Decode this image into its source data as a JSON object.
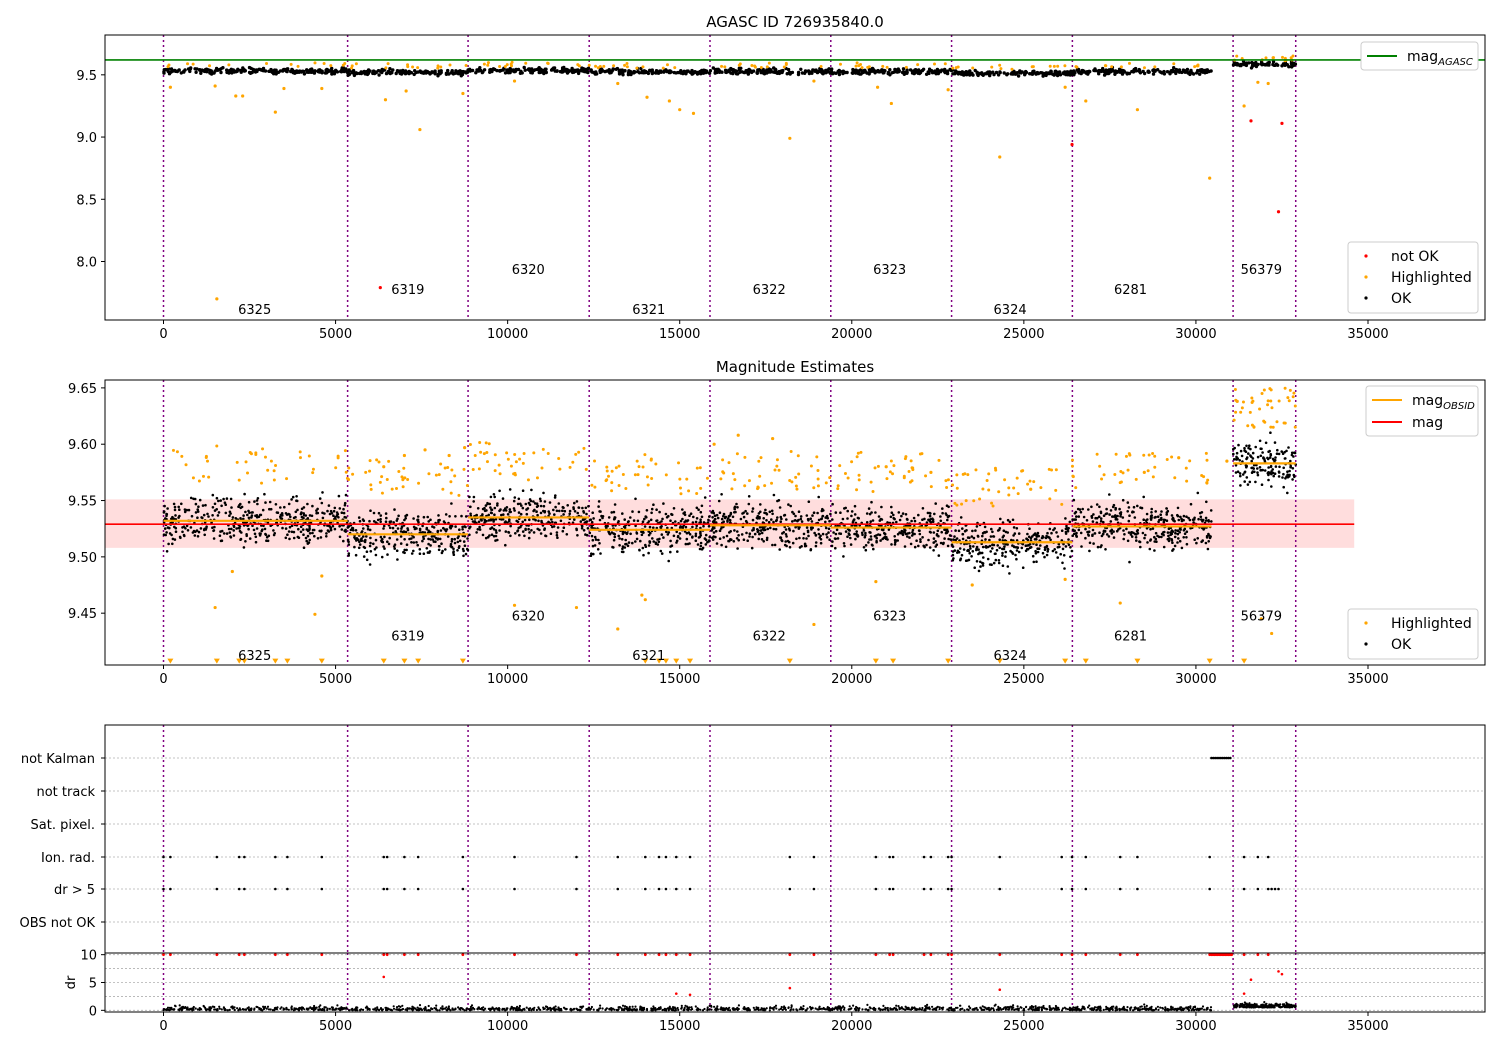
{
  "figure": {
    "title": "AGASC ID 726935840.0"
  },
  "chart_data": [
    {
      "type": "scatter",
      "title": "AGASC ID 726935840.0",
      "xlabel": "",
      "ylabel": "",
      "xlim": [
        -1700,
        38400
      ],
      "ylim": [
        7.53,
        9.82
      ],
      "x_ticks": [
        0,
        5000,
        10000,
        15000,
        20000,
        25000,
        30000,
        35000
      ],
      "y_ticks": [
        8.0,
        8.5,
        9.0,
        9.5
      ],
      "grid": false,
      "legend_upper": {
        "placement": "top-right",
        "entries": [
          {
            "label": "mag",
            "subscript": "AGASC",
            "color": "#008000",
            "kind": "line"
          }
        ]
      },
      "legend_lower": {
        "placement": "bottom-right",
        "entries": [
          {
            "label": "not OK",
            "color": "#ff0000",
            "kind": "point"
          },
          {
            "label": "Highlighted",
            "color": "#ffa500",
            "kind": "point"
          },
          {
            "label": "OK",
            "color": "#000000",
            "kind": "point"
          }
        ]
      },
      "mag_agasc": 9.62,
      "obsid_boundaries": [
        0,
        5350,
        8850,
        12370,
        15880,
        19390,
        22900,
        26410,
        31080,
        32900
      ],
      "obsid_labels": [
        {
          "text": "6325",
          "x": 2650,
          "y": 7.62
        },
        {
          "text": "6319",
          "x": 7100,
          "y": 7.78
        },
        {
          "text": "6320",
          "x": 10600,
          "y": 7.94
        },
        {
          "text": "6321",
          "x": 14100,
          "y": 7.62
        },
        {
          "text": "6322",
          "x": 17600,
          "y": 7.78
        },
        {
          "text": "6323",
          "x": 21100,
          "y": 7.94
        },
        {
          "text": "6324",
          "x": 24600,
          "y": 7.62
        },
        {
          "text": "6281",
          "x": 28100,
          "y": 7.78
        },
        {
          "text": "56379",
          "x": 31900,
          "y": 7.94
        }
      ],
      "segments": [
        {
          "x0": 0,
          "x1": 5350,
          "mean": 9.532
        },
        {
          "x0": 5350,
          "x1": 8850,
          "mean": 9.52
        },
        {
          "x0": 8850,
          "x1": 12370,
          "mean": 9.534
        },
        {
          "x0": 12370,
          "x1": 15880,
          "mean": 9.523
        },
        {
          "x0": 15880,
          "x1": 19390,
          "mean": 9.528
        },
        {
          "x0": 19390,
          "x1": 22900,
          "mean": 9.526
        },
        {
          "x0": 22900,
          "x1": 26410,
          "mean": 9.513
        },
        {
          "x0": 26410,
          "x1": 30450,
          "mean": 9.527
        },
        {
          "x0": 31080,
          "x1": 32900,
          "mean": 9.583
        }
      ],
      "ok_band_spread": 0.022,
      "highlighted_points": [
        [
          200,
          9.4
        ],
        [
          1500,
          9.41
        ],
        [
          1550,
          7.7
        ],
        [
          2100,
          9.33
        ],
        [
          2300,
          9.33
        ],
        [
          3250,
          9.2
        ],
        [
          3500,
          9.39
        ],
        [
          4600,
          9.39
        ],
        [
          6450,
          9.3
        ],
        [
          7050,
          9.37
        ],
        [
          7450,
          9.06
        ],
        [
          8700,
          9.35
        ],
        [
          10200,
          9.45
        ],
        [
          13200,
          9.43
        ],
        [
          14050,
          9.32
        ],
        [
          14700,
          9.29
        ],
        [
          15000,
          9.22
        ],
        [
          15400,
          9.19
        ],
        [
          18200,
          8.99
        ],
        [
          18900,
          9.45
        ],
        [
          20750,
          9.4
        ],
        [
          21150,
          9.27
        ],
        [
          22800,
          9.38
        ],
        [
          24300,
          8.84
        ],
        [
          26200,
          9.4
        ],
        [
          26800,
          9.29
        ],
        [
          28300,
          9.22
        ],
        [
          30400,
          8.67
        ],
        [
          31400,
          9.25
        ],
        [
          31800,
          9.44
        ],
        [
          32100,
          9.43
        ]
      ],
      "not_ok_points": [
        [
          6300,
          7.79
        ],
        [
          26400,
          8.94
        ],
        [
          31600,
          9.13
        ],
        [
          32400,
          8.4
        ],
        [
          32500,
          9.11
        ]
      ]
    },
    {
      "type": "scatter",
      "title": "Magnitude Estimates",
      "xlabel": "",
      "ylabel": "",
      "xlim": [
        -1700,
        38400
      ],
      "ylim": [
        9.404,
        9.657
      ],
      "x_ticks": [
        0,
        5000,
        10000,
        15000,
        20000,
        25000,
        30000,
        35000
      ],
      "y_ticks": [
        9.45,
        9.5,
        9.55,
        9.6,
        9.65
      ],
      "grid": false,
      "legend_upper": {
        "placement": "top-right",
        "entries": [
          {
            "label": "mag",
            "subscript": "OBSID",
            "color": "#ffa500",
            "kind": "line"
          },
          {
            "label": "mag",
            "subscript": "",
            "color": "#ff0000",
            "kind": "line"
          }
        ]
      },
      "legend_lower": {
        "placement": "bottom-right",
        "entries": [
          {
            "label": "Highlighted",
            "color": "#ffa500",
            "kind": "point"
          },
          {
            "label": "OK",
            "color": "#000000",
            "kind": "point"
          }
        ]
      },
      "mag": 9.529,
      "mag_band": [
        9.508,
        9.551
      ],
      "mag_band_xlim": [
        -1700,
        34600
      ],
      "obsid_boundaries": [
        0,
        5350,
        8850,
        12370,
        15880,
        19390,
        22900,
        26410,
        31080,
        32900
      ],
      "obsid_labels": [
        {
          "text": "6325",
          "x": 2650,
          "y": 9.413
        },
        {
          "text": "6319",
          "x": 7100,
          "y": 9.43
        },
        {
          "text": "6320",
          "x": 10600,
          "y": 9.448
        },
        {
          "text": "6321",
          "x": 14100,
          "y": 9.413
        },
        {
          "text": "6322",
          "x": 17600,
          "y": 9.43
        },
        {
          "text": "6323",
          "x": 21100,
          "y": 9.448
        },
        {
          "text": "6324",
          "x": 24600,
          "y": 9.413
        },
        {
          "text": "6281",
          "x": 28100,
          "y": 9.43
        },
        {
          "text": "56379",
          "x": 31900,
          "y": 9.448
        }
      ],
      "segments": [
        {
          "x0": 0,
          "x1": 5350,
          "mean": 9.532
        },
        {
          "x0": 5350,
          "x1": 8850,
          "mean": 9.52
        },
        {
          "x0": 8850,
          "x1": 12370,
          "mean": 9.535
        },
        {
          "x0": 12370,
          "x1": 15880,
          "mean": 9.524
        },
        {
          "x0": 15880,
          "x1": 19390,
          "mean": 9.528
        },
        {
          "x0": 19390,
          "x1": 22900,
          "mean": 9.526
        },
        {
          "x0": 22900,
          "x1": 26410,
          "mean": 9.513
        },
        {
          "x0": 26410,
          "x1": 30450,
          "mean": 9.527
        },
        {
          "x0": 31080,
          "x1": 32900,
          "mean": 9.583
        }
      ],
      "band_spread": 0.02,
      "highlighted_points": [
        [
          1500,
          9.455
        ],
        [
          2000,
          9.487
        ],
        [
          4400,
          9.449
        ],
        [
          4600,
          9.483
        ],
        [
          6400,
          9.58
        ],
        [
          7000,
          9.59
        ],
        [
          7600,
          9.595
        ],
        [
          8300,
          9.59
        ],
        [
          8750,
          9.597
        ],
        [
          10200,
          9.457
        ],
        [
          12000,
          9.455
        ],
        [
          13200,
          9.436
        ],
        [
          13900,
          9.466
        ],
        [
          14000,
          9.462
        ],
        [
          16000,
          9.6
        ],
        [
          16700,
          9.608
        ],
        [
          17700,
          9.605
        ],
        [
          18900,
          9.44
        ],
        [
          20700,
          9.478
        ],
        [
          21000,
          9.58
        ],
        [
          22300,
          9.575
        ],
        [
          23500,
          9.475
        ],
        [
          25200,
          9.56
        ],
        [
          26200,
          9.48
        ],
        [
          27800,
          9.459
        ],
        [
          28500,
          9.575
        ],
        [
          29500,
          9.588
        ],
        [
          30900,
          9.585
        ],
        [
          31200,
          9.638
        ],
        [
          31900,
          9.445
        ],
        [
          32200,
          9.432
        ]
      ],
      "out_of_range_markers_y": 9.407,
      "out_of_range_x": [
        200,
        1550,
        2200,
        2350,
        3250,
        3600,
        4600,
        6400,
        7000,
        7400,
        8700,
        14000,
        14400,
        14600,
        14900,
        15300,
        18200,
        20700,
        21200,
        22800,
        24300,
        26200,
        26800,
        28300,
        30400,
        31400
      ]
    },
    {
      "type": "scatter",
      "title": "",
      "xlabel": "",
      "ylabel": "dr",
      "xlim": [
        -1700,
        38400
      ],
      "categories": [
        "not Kalman",
        "not track",
        "Sat. pixel.",
        "Ion. rad.",
        "dr > 5",
        "OBS not OK"
      ],
      "dr_ylim": [
        -0.3,
        10.3
      ],
      "dr_y_ticks": [
        0,
        5,
        10
      ],
      "obsid_boundaries": [
        0,
        5350,
        8850,
        12370,
        15880,
        19390,
        22900,
        26410,
        31080,
        32900
      ],
      "flag_x": [
        0,
        200,
        1550,
        2200,
        2350,
        3250,
        3600,
        4600,
        6400,
        6500,
        7000,
        7400,
        8700,
        10200,
        12000,
        13200,
        14000,
        14400,
        14600,
        14900,
        15300,
        18200,
        18900,
        20700,
        21100,
        21200,
        22100,
        22300,
        22800,
        22900,
        24300,
        26100,
        26400,
        26800,
        27800,
        28300,
        30400,
        31400,
        31800,
        32100
      ],
      "dr_gt5_extra_x": [
        32200,
        32300,
        32400
      ],
      "not_kalman_range": [
        30450,
        31050
      ],
      "dr_high_points": [
        [
          6400,
          6
        ],
        [
          18200,
          4
        ],
        [
          24300,
          3.7
        ],
        [
          31400,
          3
        ],
        [
          31600,
          5.5
        ],
        [
          32400,
          7
        ],
        [
          32500,
          6.5
        ],
        [
          15300,
          2.8
        ],
        [
          14900,
          3
        ]
      ]
    }
  ]
}
